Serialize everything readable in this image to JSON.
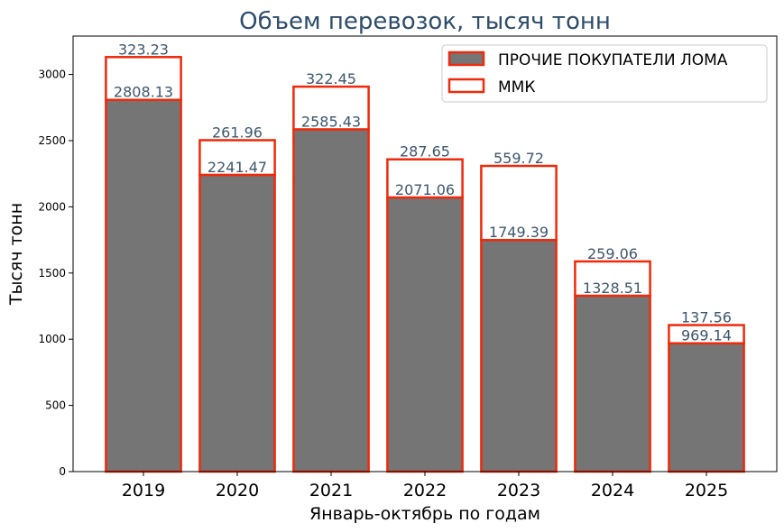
{
  "chart_data": {
    "type": "bar",
    "stacked": true,
    "title": "Объем перевозок, тысяч тонн",
    "xlabel": "Январь-октябрь по годам",
    "ylabel": "Тысяч тонн",
    "categories": [
      "2019",
      "2020",
      "2021",
      "2022",
      "2023",
      "2024",
      "2025"
    ],
    "ylim": [
      0,
      3290
    ],
    "yticks": [
      0,
      500,
      1000,
      1500,
      2000,
      2500,
      3000
    ],
    "ytick_labels": [
      "0",
      "500",
      "1000",
      "1500",
      "2000",
      "2500",
      "3000"
    ],
    "series": [
      {
        "name": "ПРОЧИЕ ПОКУПАТЕЛИ ЛОМА",
        "values": [
          2808.13,
          2241.47,
          2585.43,
          2071.06,
          1749.39,
          1328.51,
          969.14
        ],
        "labels": [
          "2808.13",
          "2241.47",
          "2585.43",
          "2071.06",
          "1749.39",
          "1328.51",
          "969.14"
        ],
        "fill": "#757575",
        "edge": "#ee2a0b"
      },
      {
        "name": "ММК",
        "values": [
          323.23,
          261.96,
          322.45,
          287.65,
          559.72,
          259.06,
          137.56
        ],
        "labels": [
          "323.23",
          "261.96",
          "322.45",
          "287.65",
          "559.72",
          "259.06",
          "137.56"
        ],
        "fill": "#ffffff",
        "edge": "#ee2a0b"
      }
    ],
    "legend_position": "top-right",
    "grid": false
  }
}
